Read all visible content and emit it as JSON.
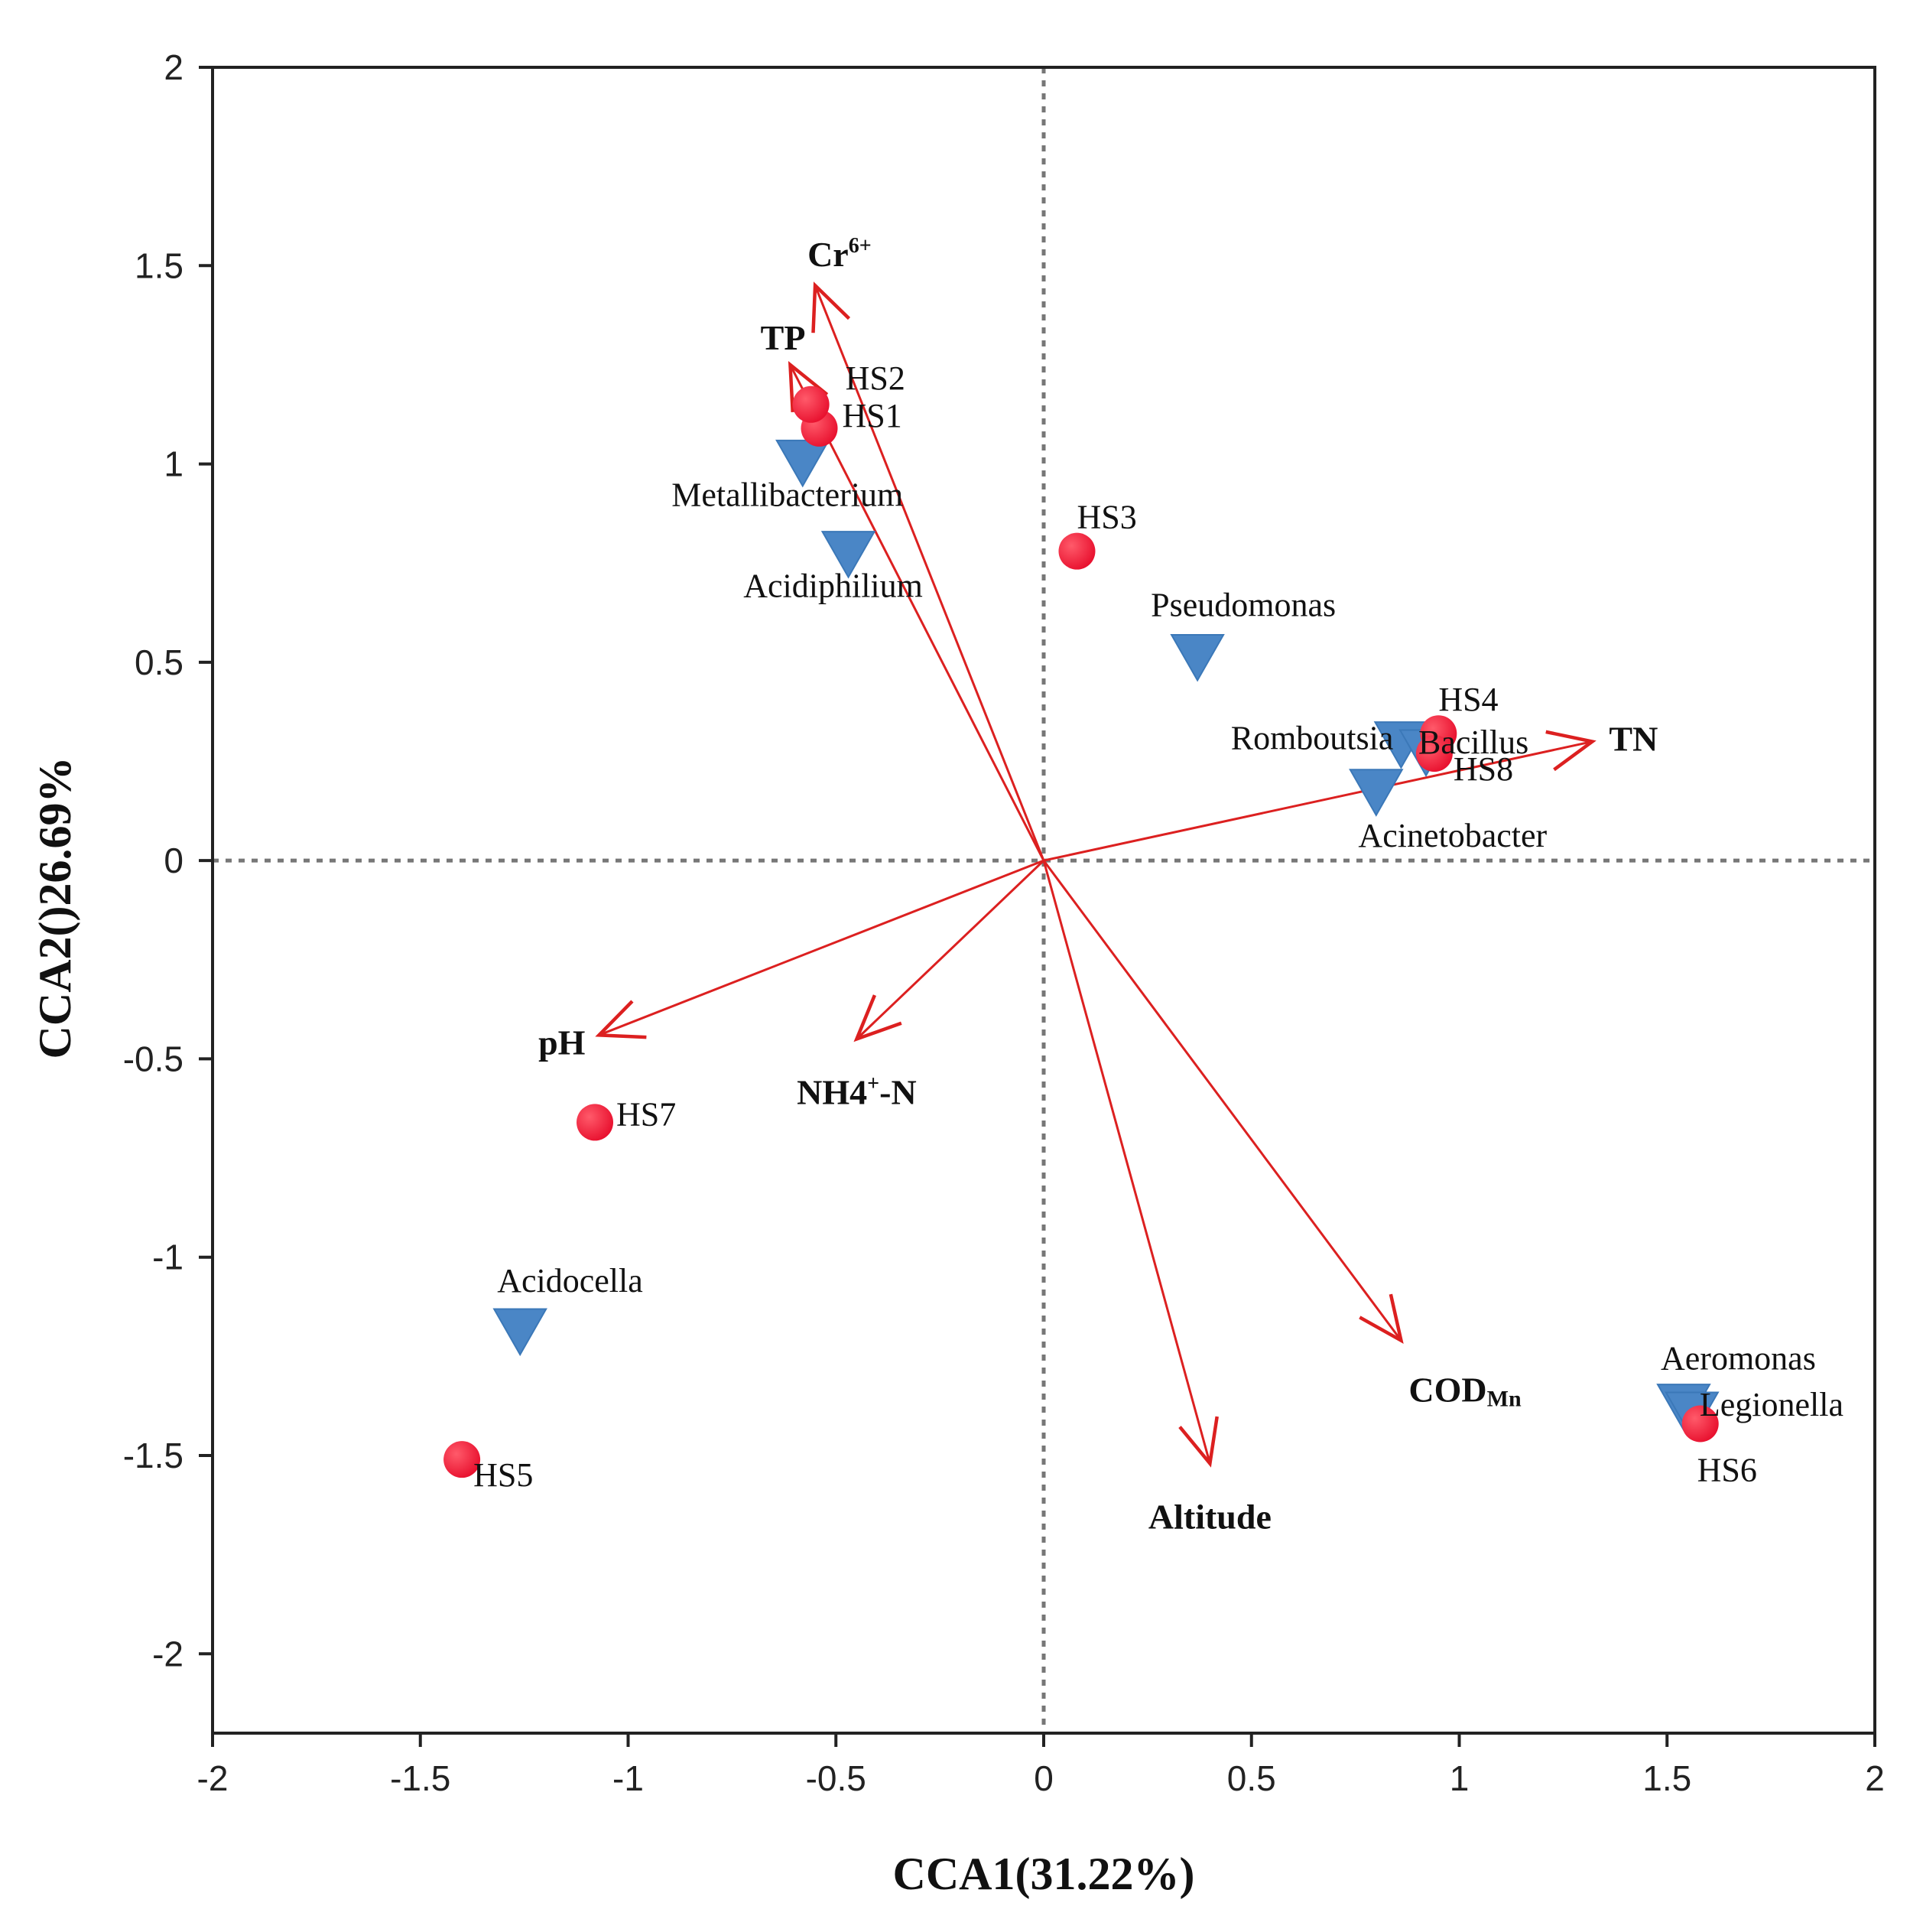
{
  "chart_data": {
    "type": "scatter",
    "title": "",
    "xlabel": "CCA1(31.22%)",
    "ylabel": "CCA2()26.69%",
    "xlim": [
      -2,
      2
    ],
    "ylim": [
      -2.2,
      2
    ],
    "xticks": [
      -2,
      -1.5,
      -1,
      -0.5,
      0,
      0.5,
      1,
      1.5,
      2
    ],
    "yticks": [
      -2,
      -1.5,
      -1,
      -0.5,
      0,
      0.5,
      1,
      1.5,
      2
    ],
    "xtick_labels": [
      "-2",
      "-1.5",
      "-1",
      "-0.5",
      "0",
      "0.5",
      "1",
      "1.5",
      "2"
    ],
    "ytick_labels": [
      "-2",
      "-1.5",
      "-1",
      "-0.5",
      "0",
      "0.5",
      "1",
      "1.5",
      "2"
    ],
    "reference_lines": {
      "x": 0,
      "y": 0,
      "style": "dotted"
    },
    "colors": {
      "samples": "#e8102e",
      "genera": "#4a86c6",
      "vectors": "#dc2020",
      "axes": "#222222",
      "reference": "#777777"
    },
    "samples": [
      {
        "name": "HS1",
        "x": -0.54,
        "y": 1.09,
        "label_pos": "right"
      },
      {
        "name": "HS2",
        "x": -0.56,
        "y": 1.15,
        "label_pos": "right"
      },
      {
        "name": "HS3",
        "x": 0.08,
        "y": 0.78,
        "label_pos": "above-right"
      },
      {
        "name": "HS4",
        "x": 0.95,
        "y": 0.32,
        "label_pos": "above-right"
      },
      {
        "name": "HS5",
        "x": -1.4,
        "y": -1.51,
        "label_pos": "right"
      },
      {
        "name": "HS6",
        "x": 1.58,
        "y": -1.42,
        "label_pos": "below"
      },
      {
        "name": "HS7",
        "x": -1.08,
        "y": -0.66,
        "label_pos": "right"
      },
      {
        "name": "HS8",
        "x": 0.94,
        "y": 0.27,
        "label_pos": "right"
      }
    ],
    "genera": [
      {
        "name": "Metallibacterium",
        "x": -0.58,
        "y": 1.01,
        "label_pos": "below"
      },
      {
        "name": "Acidiphilium",
        "x": -0.47,
        "y": 0.78,
        "label_pos": "below"
      },
      {
        "name": "Pseudomonas",
        "x": 0.37,
        "y": 0.52,
        "label_pos": "above"
      },
      {
        "name": "Romboutsia",
        "x": 0.86,
        "y": 0.3,
        "label_pos": "left"
      },
      {
        "name": "Bacillus",
        "x": 0.92,
        "y": 0.28,
        "label_pos": "right"
      },
      {
        "name": "Acinetobacter",
        "x": 0.8,
        "y": 0.18,
        "label_pos": "below-right"
      },
      {
        "name": "Acidocella",
        "x": -1.26,
        "y": -1.18,
        "label_pos": "above-right"
      },
      {
        "name": "Aeromonas",
        "x": 1.54,
        "y": -1.37,
        "label_pos": "above-right"
      },
      {
        "name": "Legionella",
        "x": 1.56,
        "y": -1.39,
        "label_pos": "right"
      }
    ],
    "env_vectors": [
      {
        "name": "Cr",
        "sup": "6+",
        "sub": "",
        "x": -0.55,
        "y": 1.45,
        "label_pos": "above-right"
      },
      {
        "name": "TP",
        "sup": "",
        "sub": "",
        "x": -0.61,
        "y": 1.25,
        "label_pos": "above-left"
      },
      {
        "name": "TN",
        "sup": "",
        "sub": "",
        "x": 1.32,
        "y": 0.3,
        "label_pos": "right"
      },
      {
        "name": "pH",
        "sup": "",
        "sub": "",
        "x": -1.07,
        "y": -0.44,
        "label_pos": "left"
      },
      {
        "name": "NH4",
        "sup": "+",
        "sub": "",
        "suffix": "-N",
        "x": -0.45,
        "y": -0.45,
        "label_pos": "below"
      },
      {
        "name": "COD",
        "sup": "",
        "sub": "Mn",
        "x": 0.86,
        "y": -1.21,
        "label_pos": "below-right"
      },
      {
        "name": "Altitude",
        "sup": "",
        "sub": "",
        "x": 0.4,
        "y": -1.52,
        "label_pos": "below"
      }
    ]
  }
}
